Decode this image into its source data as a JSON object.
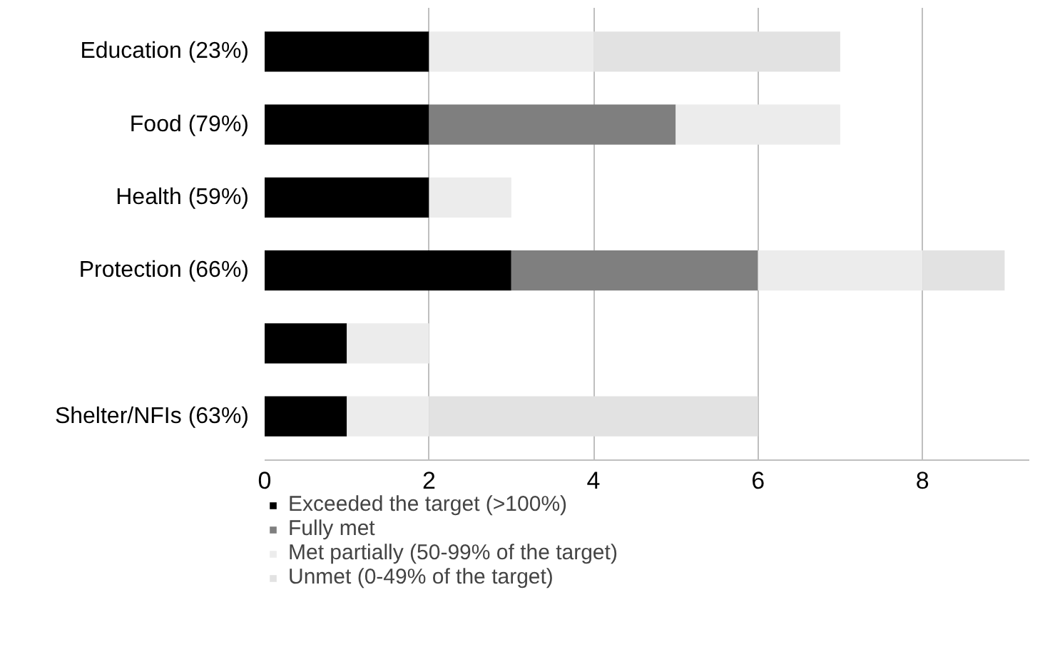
{
  "chart_data": {
    "type": "bar",
    "orientation": "horizontal",
    "stacked": true,
    "categories": [
      "Education (23%)",
      "Food (79%)",
      "Health (59%)",
      "Protection (66%)",
      null,
      "Shelter/NFIs (63%)"
    ],
    "series": [
      {
        "name": "Exceeded the target (>100%)",
        "color": "#000000",
        "values": [
          2,
          2,
          2,
          3,
          1,
          1
        ]
      },
      {
        "name": "Fully met",
        "color": "#7f7f7f",
        "values": [
          0,
          3,
          0,
          3,
          0,
          0
        ]
      },
      {
        "name": "Met partially (50-99% of the target)",
        "color": "#ececec",
        "values": [
          2,
          2,
          1,
          2,
          1,
          1
        ]
      },
      {
        "name": "Unmet (0-49% of the target)",
        "color": "#e2e2e2",
        "values": [
          3,
          0,
          0,
          1,
          0,
          4
        ]
      }
    ],
    "xlim": [
      0,
      9.3
    ],
    "xticks": [
      0,
      2,
      4,
      6,
      8
    ],
    "grid": "x",
    "legend": "bottom"
  }
}
